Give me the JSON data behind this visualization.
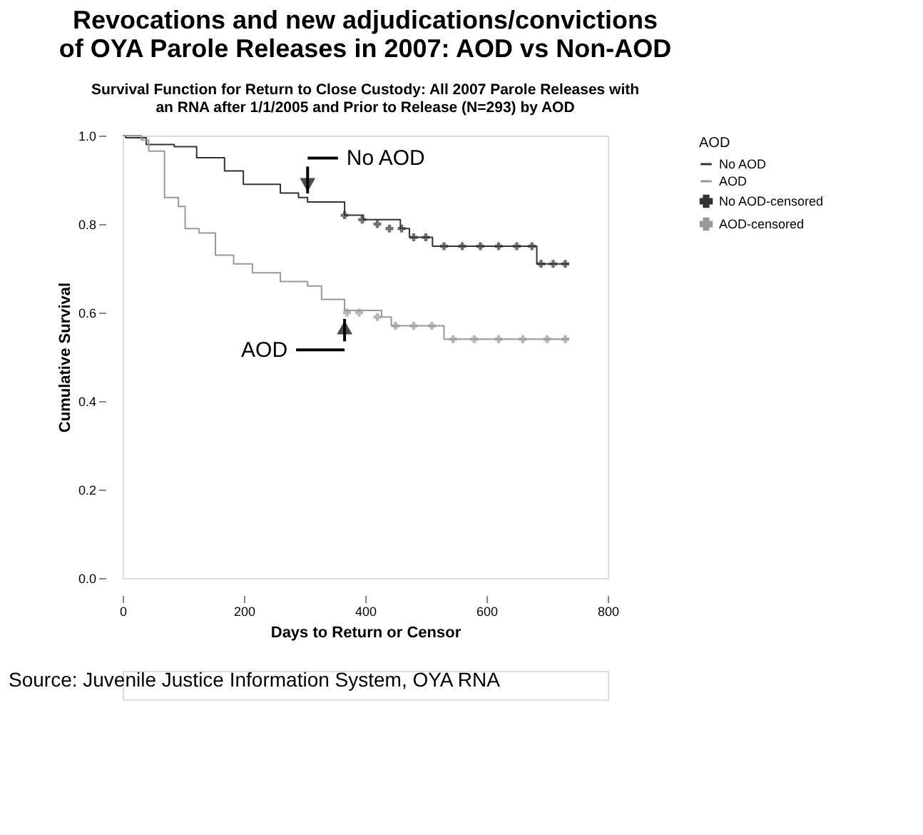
{
  "chart_data": {
    "type": "step",
    "title": [
      "Revocations and new adjudications/convictions",
      "of OYA Parole Releases in 2007: AOD vs Non-AOD"
    ],
    "subtitle": [
      "Survival Function for Return to Close Custody: All 2007 Parole Releases with",
      "an RNA after 1/1/2005 and Prior to Release (N=293) by AOD"
    ],
    "xlabel": "Days to Return or Censor",
    "ylabel": "Cumulative Survival",
    "legend_title": "AOD",
    "series": [
      {
        "name": "No AOD",
        "type": "step",
        "color": "#333333",
        "x": [
          0,
          5,
          39,
          85,
          122,
          168,
          199,
          260,
          290,
          305,
          366,
          397,
          458,
          473,
          511,
          679,
          683,
          736
        ],
        "values": [
          1.0,
          0.995,
          0.98,
          0.975,
          0.95,
          0.92,
          0.89,
          0.87,
          0.86,
          0.85,
          0.82,
          0.81,
          0.79,
          0.77,
          0.75,
          0.75,
          0.71,
          0.71
        ]
      },
      {
        "name": "AOD",
        "type": "step",
        "color": "#999999",
        "x": [
          0,
          31,
          43,
          69,
          92,
          103,
          126,
          153,
          183,
          214,
          260,
          305,
          328,
          366,
          427,
          443,
          530,
          736
        ],
        "values": [
          1.0,
          0.99,
          0.965,
          0.86,
          0.84,
          0.79,
          0.78,
          0.73,
          0.71,
          0.69,
          0.67,
          0.66,
          0.63,
          0.605,
          0.59,
          0.57,
          0.54,
          0.54
        ]
      },
      {
        "name": "No AOD-censored",
        "type": "scatter",
        "marker": "cross",
        "color": "#333333",
        "x": [
          366,
          395,
          420,
          440,
          460,
          480,
          500,
          530,
          560,
          590,
          620,
          650,
          675,
          690,
          710,
          730
        ],
        "values": [
          0.82,
          0.81,
          0.8,
          0.79,
          0.79,
          0.77,
          0.77,
          0.75,
          0.75,
          0.75,
          0.75,
          0.75,
          0.75,
          0.71,
          0.71,
          0.71
        ]
      },
      {
        "name": "AOD-censored",
        "type": "scatter",
        "marker": "cross",
        "color": "#999999",
        "x": [
          370,
          390,
          420,
          450,
          480,
          510,
          545,
          580,
          620,
          660,
          700,
          730
        ],
        "values": [
          0.6,
          0.6,
          0.59,
          0.57,
          0.57,
          0.57,
          0.54,
          0.54,
          0.54,
          0.54,
          0.54,
          0.54
        ]
      }
    ],
    "xlim": [
      0,
      800
    ],
    "xticks": [
      0,
      200,
      400,
      600,
      800
    ],
    "ylim": [
      0,
      1
    ],
    "yticks": [
      {
        "value": 0,
        "label": "0.0"
      },
      0.2,
      0.4,
      0.6,
      0.8,
      {
        "value": 1,
        "label": "1.0"
      }
    ],
    "grid": false,
    "legend": "top right",
    "annotations": [
      {
        "text": "No AOD",
        "x": 305,
        "y": 0.85
      },
      {
        "text": "AOD",
        "x": 366,
        "y": 0.605
      },
      "Source: Juvenile Justice Information System, OYA RNA"
    ]
  }
}
